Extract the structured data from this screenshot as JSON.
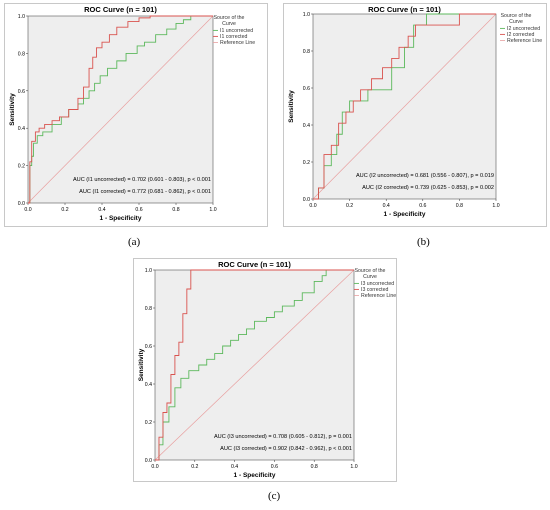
{
  "figure": {
    "sub_labels": [
      "(a)",
      "(b)",
      "(c)"
    ]
  },
  "colors": {
    "uncorrected": "#5cb85c",
    "corrected": "#d9534f",
    "reference": "#e8a0a0",
    "plot_bg": "#eeeeee",
    "grid": "#ffffff"
  },
  "chart_data": [
    {
      "type": "line",
      "title": "ROC Curve (n = 101)",
      "xlabel": "1 - Specificity",
      "ylabel": "Sensitivity",
      "xlim": [
        0,
        1
      ],
      "ylim": [
        0,
        1
      ],
      "xticks": [
        "0.0",
        "0.2",
        "0.4",
        "0.6",
        "0.8",
        "1.0"
      ],
      "yticks": [
        "0.0",
        "0.2",
        "0.4",
        "0.6",
        "0.8",
        "1.0"
      ],
      "legend_title": "Source of the Curve",
      "legend_position": "right",
      "series": [
        {
          "name": "I1 uncorrected",
          "x": [
            0,
            0.01,
            0.01,
            0.02,
            0.02,
            0.03,
            0.03,
            0.05,
            0.05,
            0.08,
            0.08,
            0.13,
            0.13,
            0.18,
            0.18,
            0.22,
            0.22,
            0.27,
            0.27,
            0.3,
            0.3,
            0.33,
            0.33,
            0.36,
            0.36,
            0.39,
            0.39,
            0.43,
            0.43,
            0.48,
            0.48,
            0.53,
            0.53,
            0.59,
            0.59,
            0.63,
            0.63,
            0.69,
            0.69,
            0.75,
            0.75,
            0.8,
            0.8,
            0.84,
            0.84,
            0.88,
            0.88,
            1.0
          ],
          "y": [
            0,
            0,
            0.2,
            0.2,
            0.25,
            0.25,
            0.32,
            0.32,
            0.36,
            0.36,
            0.38,
            0.38,
            0.42,
            0.42,
            0.46,
            0.46,
            0.5,
            0.5,
            0.53,
            0.53,
            0.56,
            0.56,
            0.6,
            0.6,
            0.64,
            0.64,
            0.68,
            0.68,
            0.72,
            0.72,
            0.76,
            0.76,
            0.8,
            0.8,
            0.84,
            0.84,
            0.86,
            0.86,
            0.9,
            0.9,
            0.93,
            0.93,
            0.96,
            0.96,
            0.98,
            0.98,
            1.0,
            1.0
          ]
        },
        {
          "name": "I1 corrected",
          "x": [
            0,
            0.01,
            0.01,
            0.02,
            0.02,
            0.04,
            0.04,
            0.06,
            0.06,
            0.09,
            0.09,
            0.13,
            0.13,
            0.17,
            0.17,
            0.22,
            0.22,
            0.27,
            0.27,
            0.3,
            0.3,
            0.33,
            0.33,
            0.35,
            0.35,
            0.37,
            0.37,
            0.4,
            0.4,
            0.44,
            0.44,
            0.48,
            0.48,
            0.54,
            0.54,
            0.6,
            0.6,
            0.66,
            0.66,
            1.0
          ],
          "y": [
            0,
            0,
            0.22,
            0.22,
            0.33,
            0.33,
            0.38,
            0.38,
            0.4,
            0.4,
            0.42,
            0.42,
            0.44,
            0.44,
            0.46,
            0.46,
            0.5,
            0.5,
            0.56,
            0.56,
            0.62,
            0.62,
            0.72,
            0.72,
            0.78,
            0.78,
            0.83,
            0.83,
            0.86,
            0.86,
            0.9,
            0.9,
            0.94,
            0.94,
            0.97,
            0.97,
            0.99,
            0.99,
            1.0,
            1.0
          ]
        }
      ],
      "annotations": [
        "AUC (I1 uncorrected) = 0.702 (0.601 - 0.803), p < 0.001",
        "AUC (I1 corrected) = 0.772 (0.681 - 0.862), p < 0.001"
      ]
    },
    {
      "type": "line",
      "title": "ROC Curve (n = 101)",
      "xlabel": "1 - Specificity",
      "ylabel": "Sensitivity",
      "xlim": [
        0,
        1
      ],
      "ylim": [
        0,
        1
      ],
      "xticks": [
        "0.0",
        "0.2",
        "0.4",
        "0.6",
        "0.8",
        "1.0"
      ],
      "yticks": [
        "0.0",
        "0.2",
        "0.4",
        "0.6",
        "0.8",
        "1.0"
      ],
      "legend_title": "Source of the Curve",
      "legend_position": "right",
      "series": [
        {
          "name": "I2 uncorrected",
          "x": [
            0,
            0.03,
            0.03,
            0.06,
            0.06,
            0.1,
            0.1,
            0.13,
            0.13,
            0.16,
            0.16,
            0.2,
            0.2,
            0.25,
            0.25,
            0.3,
            0.3,
            0.38,
            0.38,
            0.43,
            0.43,
            0.5,
            0.5,
            0.55,
            0.55,
            0.62,
            0.62,
            1.0
          ],
          "y": [
            0,
            0,
            0.06,
            0.06,
            0.18,
            0.18,
            0.24,
            0.24,
            0.35,
            0.35,
            0.47,
            0.47,
            0.53,
            0.53,
            0.53,
            0.53,
            0.59,
            0.59,
            0.59,
            0.59,
            0.71,
            0.71,
            0.82,
            0.82,
            0.94,
            0.94,
            1.0,
            1.0
          ]
        },
        {
          "name": "I2 corrected",
          "x": [
            0,
            0.03,
            0.03,
            0.06,
            0.06,
            0.1,
            0.1,
            0.14,
            0.14,
            0.18,
            0.18,
            0.22,
            0.22,
            0.26,
            0.26,
            0.32,
            0.32,
            0.38,
            0.38,
            0.43,
            0.43,
            0.47,
            0.47,
            0.52,
            0.52,
            0.56,
            0.56,
            0.8,
            0.8,
            1.0
          ],
          "y": [
            0,
            0,
            0.06,
            0.06,
            0.24,
            0.24,
            0.29,
            0.29,
            0.41,
            0.41,
            0.47,
            0.47,
            0.53,
            0.53,
            0.59,
            0.59,
            0.65,
            0.65,
            0.71,
            0.71,
            0.76,
            0.76,
            0.82,
            0.82,
            0.88,
            0.88,
            0.94,
            0.94,
            1.0,
            1.0
          ]
        }
      ],
      "annotations": [
        "AUC (I2 uncorrected) = 0.681 (0.556 - 0.807), p = 0.019",
        "AUC (I2 corrected) = 0.739 (0.625 - 0.853), p = 0.002"
      ]
    },
    {
      "type": "line",
      "title": "ROC Curve (n = 101)",
      "xlabel": "1 - Specificity",
      "ylabel": "Sensitivity",
      "xlim": [
        0,
        1
      ],
      "ylim": [
        0,
        1
      ],
      "xticks": [
        "0.0",
        "0.2",
        "0.4",
        "0.6",
        "0.8",
        "1.0"
      ],
      "yticks": [
        "0.0",
        "0.2",
        "0.4",
        "0.6",
        "0.8",
        "1.0"
      ],
      "legend_title": "Source of the Curve",
      "legend_position": "right",
      "series": [
        {
          "name": "I3 uncorrected",
          "x": [
            0,
            0.02,
            0.02,
            0.04,
            0.04,
            0.07,
            0.07,
            0.1,
            0.1,
            0.13,
            0.13,
            0.17,
            0.17,
            0.22,
            0.22,
            0.26,
            0.26,
            0.3,
            0.3,
            0.34,
            0.34,
            0.38,
            0.38,
            0.42,
            0.42,
            0.46,
            0.46,
            0.5,
            0.5,
            0.56,
            0.56,
            0.6,
            0.6,
            0.64,
            0.64,
            0.7,
            0.7,
            0.74,
            0.74,
            0.8,
            0.8,
            0.84,
            0.84,
            0.86,
            0.86,
            1.0
          ],
          "y": [
            0,
            0,
            0.08,
            0.08,
            0.2,
            0.2,
            0.28,
            0.28,
            0.38,
            0.38,
            0.43,
            0.43,
            0.47,
            0.47,
            0.5,
            0.5,
            0.53,
            0.53,
            0.56,
            0.56,
            0.6,
            0.6,
            0.63,
            0.63,
            0.66,
            0.66,
            0.69,
            0.69,
            0.73,
            0.73,
            0.75,
            0.75,
            0.78,
            0.78,
            0.81,
            0.81,
            0.84,
            0.84,
            0.88,
            0.88,
            0.94,
            0.94,
            0.97,
            0.97,
            1.0,
            1.0
          ]
        },
        {
          "name": "I3 corrected",
          "x": [
            0,
            0.02,
            0.02,
            0.04,
            0.04,
            0.06,
            0.06,
            0.08,
            0.08,
            0.1,
            0.1,
            0.12,
            0.12,
            0.14,
            0.14,
            0.16,
            0.16,
            0.18,
            0.18,
            1.0
          ],
          "y": [
            0,
            0,
            0.12,
            0.12,
            0.25,
            0.25,
            0.3,
            0.3,
            0.45,
            0.45,
            0.55,
            0.55,
            0.62,
            0.62,
            0.77,
            0.77,
            0.9,
            0.9,
            1.0,
            1.0
          ]
        }
      ],
      "annotations": [
        "AUC (I3 uncorrected) = 0.708 (0.605 - 0.812), p = 0.001",
        "AUC (I3 corrected) = 0.902 (0.842 - 0.962), p < 0.001"
      ]
    }
  ]
}
